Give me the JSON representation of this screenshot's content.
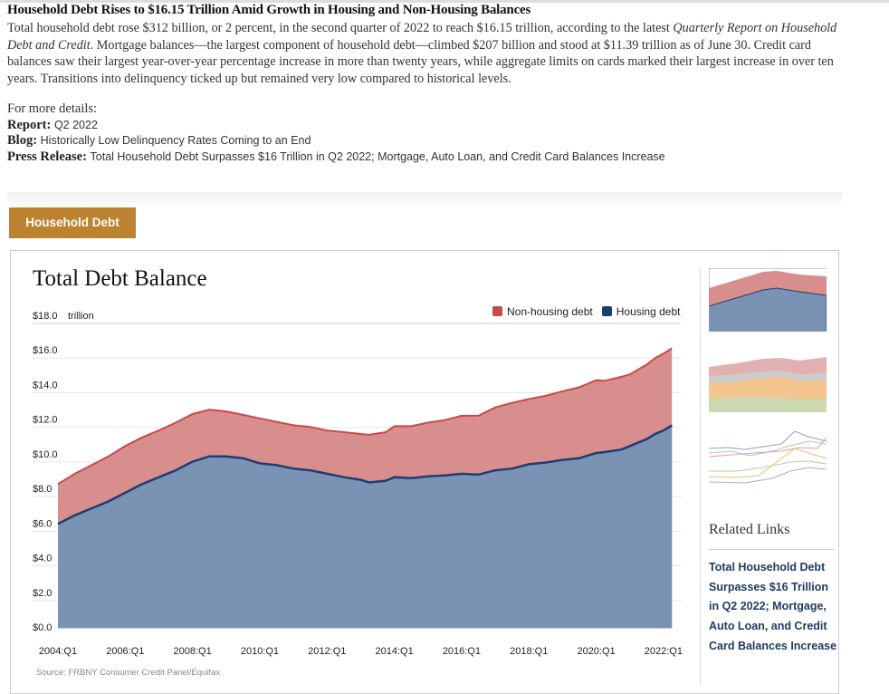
{
  "article": {
    "title": "Household Debt Rises to $16.15 Trillion Amid Growth in Housing and Non-Housing Balances",
    "intro_part1": "Total household debt rose $312 billion, or 2 percent, in the second quarter of 2022 to reach $16.15 trillion, according to the latest ",
    "intro_italic": "Quarterly Report on Household Debt and Credit",
    "intro_part2": ". Mortgage balances—the largest component of household debt—climbed $207 billion and stood at $11.39 trillion as of June 30. Credit card balances saw their largest year-over-year percentage increase in more than twenty years, while aggregate limits on cards marked their largest increase in over ten years. Transitions into delinquency ticked up but remained very low compared to historical levels.",
    "details_label": "For more details:",
    "report_label": "Report:",
    "report_value": "Q2 2022",
    "blog_label": "Blog:",
    "blog_value": "Historically Low Delinquency Rates Coming to an End",
    "press_label": "Press Release:",
    "press_value": "Total Household Debt Surpasses $16 Trillion in Q2 2022; Mortgage, Auto Loan, and Credit Card Balances Increase"
  },
  "tab": {
    "label": "Household Debt",
    "color": "#bd822f"
  },
  "sidebar": {
    "related_title": "Related Links",
    "related_link": "Total Household Debt Surpasses $16 Trillion in Q2 2022; Mortgage, Auto Loan, and Credit Card Balances Increase",
    "thumbnails": [
      "stacked-area-thumbnail",
      "multi-stacked-area-thumbnail",
      "multi-line-thumbnail"
    ]
  },
  "chart_data": {
    "type": "area",
    "stacked": true,
    "title": "Total Debt Balance",
    "yunit": "trillion",
    "ylim": [
      0,
      18
    ],
    "yticks": [
      "$0.0",
      "$2.0",
      "$4.0",
      "$6.0",
      "$8.0",
      "$10.0",
      "$12.0",
      "$14.0",
      "$16.0",
      "$18.0"
    ],
    "xticks": [
      "2004:Q1",
      "2006:Q1",
      "2008:Q1",
      "2010:Q1",
      "2012:Q1",
      "2014:Q1",
      "2016:Q1",
      "2018:Q1",
      "2020:Q1",
      "2022:Q1"
    ],
    "grid": true,
    "legend_position": "top-right",
    "source": "Source: FRBNY Consumer Credit Panel/Equifax",
    "colors": {
      "non_housing_fill": "#d98e8e",
      "non_housing_line": "#c94a4a",
      "housing_fill": "#7a93b5",
      "housing_line": "#1e3d70"
    },
    "x": [
      "2004:Q1",
      "2004:Q3",
      "2005:Q1",
      "2005:Q3",
      "2006:Q1",
      "2006:Q3",
      "2007:Q1",
      "2007:Q3",
      "2008:Q1",
      "2008:Q3",
      "2009:Q1",
      "2009:Q3",
      "2010:Q1",
      "2010:Q3",
      "2011:Q1",
      "2011:Q3",
      "2012:Q1",
      "2012:Q3",
      "2013:Q1",
      "2013:Q2",
      "2013:Q4",
      "2014:Q1",
      "2014:Q3",
      "2015:Q1",
      "2015:Q3",
      "2016:Q1",
      "2016:Q3",
      "2017:Q1",
      "2017:Q3",
      "2018:Q1",
      "2018:Q3",
      "2019:Q1",
      "2019:Q3",
      "2020:Q1",
      "2020:Q2",
      "2020:Q4",
      "2021:Q1",
      "2021:Q3",
      "2021:Q4",
      "2022:Q1",
      "2022:Q2"
    ],
    "series": [
      {
        "name": "Housing debt",
        "values": [
          6.0,
          6.5,
          6.9,
          7.3,
          7.8,
          8.3,
          8.7,
          9.1,
          9.6,
          9.9,
          9.9,
          9.8,
          9.5,
          9.4,
          9.2,
          9.1,
          8.9,
          8.7,
          8.55,
          8.4,
          8.5,
          8.7,
          8.65,
          8.75,
          8.8,
          8.9,
          8.85,
          9.1,
          9.2,
          9.45,
          9.55,
          9.7,
          9.8,
          10.1,
          10.15,
          10.3,
          10.5,
          10.9,
          11.2,
          11.4,
          11.7
        ]
      },
      {
        "name": "Non-housing debt",
        "values": [
          2.3,
          2.4,
          2.5,
          2.6,
          2.7,
          2.7,
          2.7,
          2.75,
          2.75,
          2.7,
          2.6,
          2.5,
          2.6,
          2.5,
          2.5,
          2.5,
          2.5,
          2.6,
          2.65,
          2.75,
          2.8,
          2.95,
          3.0,
          3.1,
          3.2,
          3.35,
          3.4,
          3.63,
          3.8,
          3.76,
          3.85,
          3.97,
          4.1,
          4.2,
          4.12,
          4.2,
          4.14,
          4.3,
          4.38,
          4.44,
          4.45
        ]
      }
    ]
  }
}
